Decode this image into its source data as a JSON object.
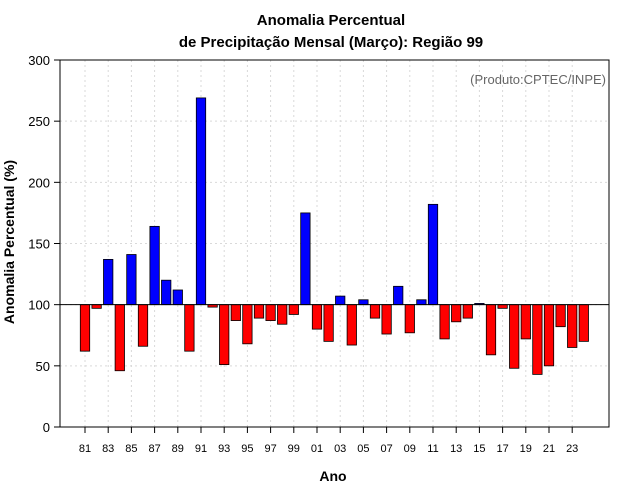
{
  "chart_data": {
    "type": "bar",
    "title_line1": "Anomalia Percentual",
    "title_line2": "de Precipitação Mensal (Março): Região 99",
    "xlabel": "Ano",
    "ylabel": "Anomalia Percentual (%)",
    "credit": "(Produto:CPTEC/INPE)",
    "ylim": [
      0,
      300
    ],
    "yticks": [
      0,
      50,
      100,
      150,
      200,
      250,
      300
    ],
    "baseline": 100,
    "grid": true,
    "colors": {
      "above": "#0000ff",
      "below": "#ff0000",
      "outline": "#000000",
      "grid": "#d9d9d9"
    },
    "categories": [
      "81",
      "82",
      "83",
      "84",
      "85",
      "86",
      "87",
      "88",
      "89",
      "90",
      "91",
      "92",
      "93",
      "94",
      "95",
      "96",
      "97",
      "98",
      "99",
      "00",
      "01",
      "02",
      "03",
      "04",
      "05",
      "06",
      "07",
      "08",
      "09",
      "10",
      "11",
      "12",
      "13",
      "14",
      "15",
      "16",
      "17",
      "18",
      "19",
      "20",
      "21",
      "22",
      "23",
      "24"
    ],
    "xtick_labels": [
      "81",
      "83",
      "85",
      "87",
      "89",
      "91",
      "93",
      "95",
      "97",
      "99",
      "01",
      "03",
      "05",
      "07",
      "09",
      "11",
      "13",
      "15",
      "17",
      "19",
      "21",
      "23"
    ],
    "values": [
      62,
      97,
      137,
      46,
      141,
      66,
      164,
      120,
      112,
      62,
      269,
      98,
      51,
      87,
      68,
      89,
      87,
      84,
      92,
      175,
      80,
      70,
      107,
      67,
      104,
      89,
      76,
      115,
      77,
      104,
      182,
      72,
      86,
      89,
      101,
      59,
      97,
      48,
      72,
      43,
      50,
      82,
      65,
      70
    ]
  }
}
